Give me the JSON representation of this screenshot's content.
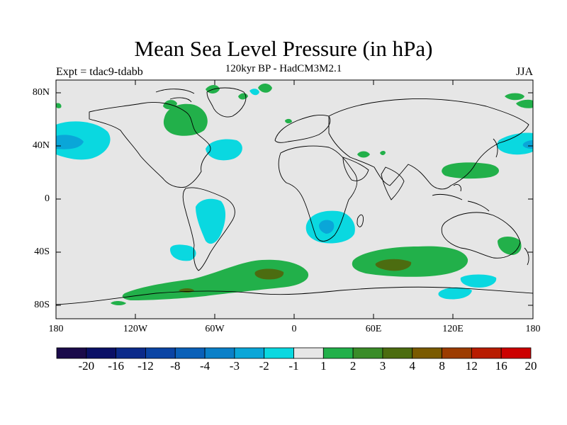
{
  "header": {
    "title": "Mean Sea Level Pressure (in hPa)",
    "subtitle": "120kyr BP - HadCM3M2.1",
    "left_note": "Expt = tdac9-tdabb",
    "right_note": "JJA"
  },
  "axes": {
    "y_labels": [
      "80N",
      "40N",
      "0",
      "40S",
      "80S"
    ],
    "x_labels": [
      "180",
      "120W",
      "60W",
      "0",
      "60E",
      "120E",
      "180"
    ]
  },
  "colorbar": {
    "labels": [
      "-20",
      "-16",
      "-12",
      "-8",
      "-4",
      "-3",
      "-2",
      "-1",
      "1",
      "2",
      "3",
      "4",
      "8",
      "12",
      "16",
      "20"
    ],
    "colors": [
      "#1a0a4a",
      "#0a1066",
      "#0b2a8a",
      "#0a44a4",
      "#0a60b8",
      "#0a80c8",
      "#0aa6d8",
      "#0ad8e0",
      "#e6e6e6",
      "#22b04a",
      "#3a8c28",
      "#4c6c10",
      "#7a5a00",
      "#9c3c00",
      "#b81c00",
      "#cc0000"
    ]
  },
  "map": {
    "background": "#e6e6e6"
  }
}
